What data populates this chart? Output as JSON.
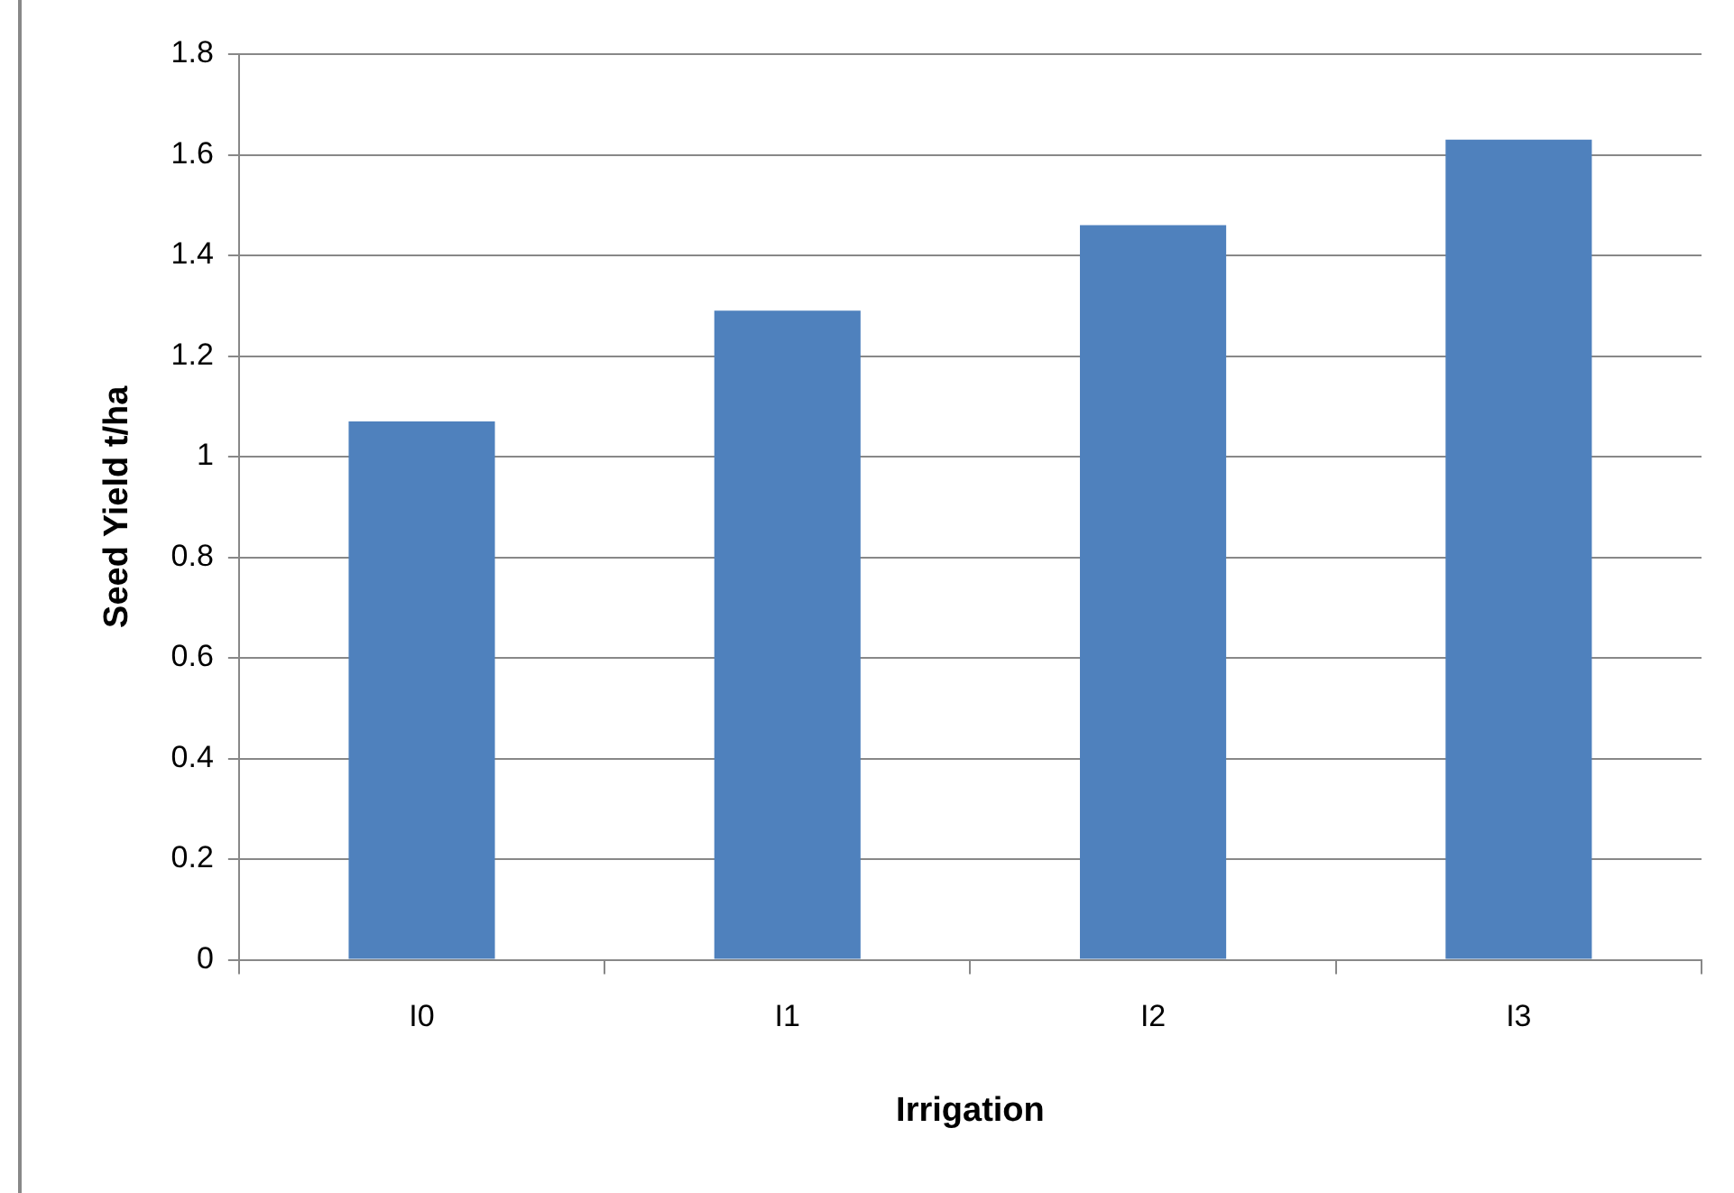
{
  "chart_data": {
    "type": "bar",
    "xlabel": "Irrigation",
    "ylabel": "Seed Yield t/ha",
    "categories": [
      "I0",
      "I1",
      "I2",
      "I3"
    ],
    "values": [
      1.07,
      1.29,
      1.46,
      1.63
    ],
    "color": "#4f81bd",
    "ylim": [
      0,
      1.8
    ],
    "yticks": [
      0,
      0.2,
      0.4,
      0.6,
      0.8,
      1,
      1.2,
      1.4,
      1.6,
      1.8
    ],
    "grid": "y",
    "legend": false
  }
}
